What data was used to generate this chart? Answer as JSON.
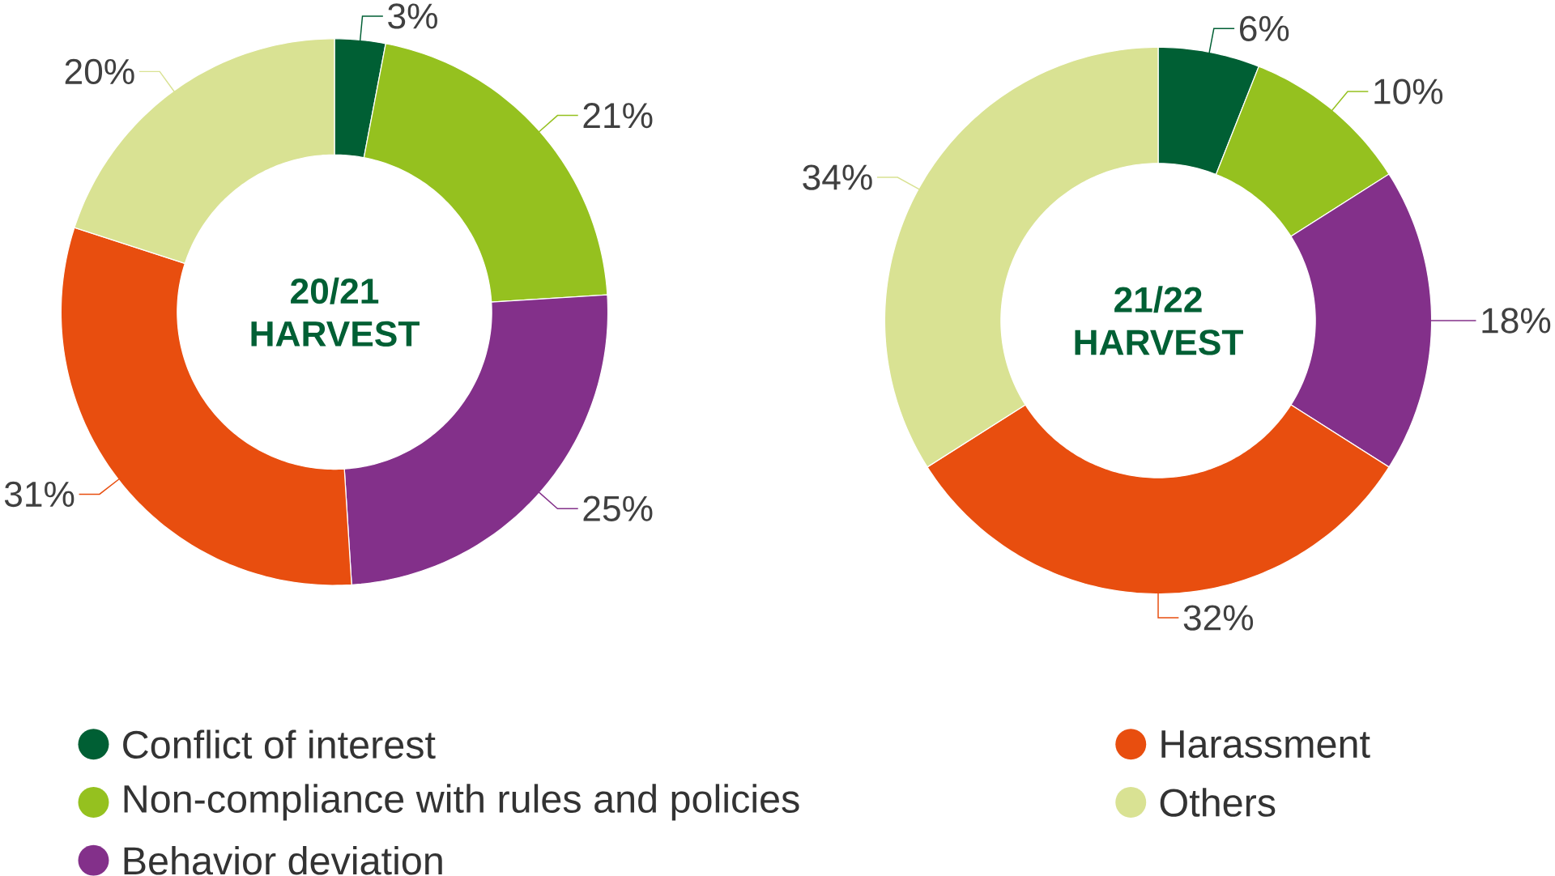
{
  "chart_data": [
    {
      "type": "donut",
      "title": "20/21 HARVEST",
      "categories": [
        "Conflict of interest",
        "Non-compliance with rules and policies",
        "Behavior deviation",
        "Harassment",
        "Others"
      ],
      "values": [
        3,
        21,
        25,
        31,
        20
      ],
      "value_labels": [
        "3%",
        "21%",
        "25%",
        "31%",
        "20%"
      ],
      "colors": [
        "#005f34",
        "#95c11f",
        "#83308a",
        "#e84e0f",
        "#d9e293"
      ],
      "legend": "bottom"
    },
    {
      "type": "donut",
      "title": "21/22 HARVEST",
      "categories": [
        null,
        null,
        null,
        null,
        null
      ],
      "values": [
        6,
        10,
        18,
        32,
        34
      ],
      "value_labels": [
        "6%",
        "10%",
        "18%",
        "32%",
        "34%"
      ],
      "colors": [
        "#005f34",
        "#95c11f",
        "#83308a",
        "#e84e0f",
        "#d9e293"
      ]
    }
  ]
}
